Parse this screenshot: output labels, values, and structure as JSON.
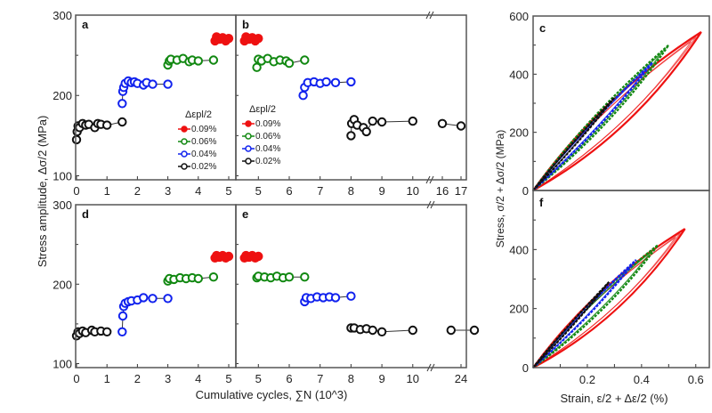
{
  "figure": {
    "ylabel_left": "Stress amplitude, Δσ/2 (MPa)",
    "xlabel_left": "Cumulative cycles, ∑N (10^3)",
    "ylabel_right": "Stress, σ/2 + Δσ/2 (MPa)",
    "xlabel_right": "Strain, ε/2 + Δε/2 (%)",
    "legend_title": "Δεpl/2",
    "colors": {
      "0.09%": "#ee1111",
      "0.06%": "#118811",
      "0.04%": "#1122ee",
      "0.02%": "#111111"
    }
  },
  "chart_data": [
    {
      "panel": "a",
      "type": "scatter",
      "xlabel": "Cumulative cycles, ∑N (10^3)",
      "ylabel": "Stress amplitude, Δσ/2 (MPa)",
      "xlim": [
        0,
        5.3
      ],
      "ylim": [
        95,
        300
      ],
      "xticks": [
        0,
        1,
        2,
        3,
        4,
        5
      ],
      "yticks": [
        100,
        200,
        300
      ],
      "legend": {
        "title": "Δεpl/2",
        "entries": [
          "0.09%",
          "0.06%",
          "0.04%",
          "0.02%"
        ],
        "placement": "center-right"
      },
      "series": [
        {
          "name": "0.02%",
          "x": [
            0,
            0.02,
            0.05,
            0.1,
            0.2,
            0.3,
            0.4,
            0.6,
            0.7,
            0.8,
            1.0,
            1.5
          ],
          "y": [
            145,
            155,
            162,
            160,
            165,
            163,
            164,
            160,
            165,
            164,
            163,
            167
          ]
        },
        {
          "name": "0.04%",
          "x": [
            1.5,
            1.52,
            1.55,
            1.6,
            1.7,
            1.8,
            1.9,
            2.0,
            2.2,
            2.3,
            2.5,
            3.0
          ],
          "y": [
            190,
            205,
            210,
            215,
            218,
            216,
            217,
            215,
            213,
            216,
            214,
            214
          ]
        },
        {
          "name": "0.06%",
          "x": [
            3.0,
            3.05,
            3.1,
            3.3,
            3.5,
            3.7,
            3.8,
            4.0,
            4.5
          ],
          "y": [
            238,
            243,
            245,
            244,
            246,
            242,
            244,
            243,
            244
          ]
        },
        {
          "name": "0.09%",
          "x": [
            4.55,
            4.6,
            4.7,
            4.8,
            4.9,
            5.0
          ],
          "y": [
            268,
            273,
            270,
            272,
            268,
            271
          ]
        }
      ]
    },
    {
      "panel": "b",
      "type": "scatter",
      "xlabel": "Cumulative cycles, ∑N (10^3)",
      "ylabel": "",
      "xlim": [
        4.3,
        17.2
      ],
      "axis_break": [
        10,
        16
      ],
      "xticks": [
        5,
        6,
        7,
        8,
        9,
        10,
        16,
        17
      ],
      "ylim": [
        95,
        300
      ],
      "legend": {
        "title": "Δεpl/2",
        "entries": [
          "0.09%",
          "0.06%",
          "0.04%",
          "0.02%"
        ],
        "placement": "center-left"
      },
      "series": [
        {
          "name": "0.09%",
          "x": [
            4.55,
            4.6,
            4.7,
            4.8,
            4.9,
            5.0
          ],
          "y": [
            268,
            273,
            270,
            272,
            268,
            271
          ]
        },
        {
          "name": "0.06%",
          "x": [
            4.95,
            5.0,
            5.1,
            5.3,
            5.5,
            5.7,
            5.9,
            6.0,
            6.5
          ],
          "y": [
            235,
            245,
            243,
            246,
            242,
            244,
            243,
            240,
            244
          ]
        },
        {
          "name": "0.04%",
          "x": [
            6.45,
            6.5,
            6.6,
            6.8,
            7.0,
            7.2,
            7.5,
            8.0
          ],
          "y": [
            200,
            210,
            216,
            217,
            215,
            217,
            216,
            217
          ]
        },
        {
          "name": "0.02%",
          "x": [
            8.0,
            8.02,
            8.1,
            8.2,
            8.4,
            8.5,
            8.7,
            9.0,
            10.0,
            16.0,
            17.0
          ],
          "y": [
            150,
            165,
            170,
            163,
            160,
            155,
            168,
            167,
            168,
            165,
            162
          ]
        }
      ]
    },
    {
      "panel": "c",
      "type": "line",
      "xlabel": "Strain, ε/2 + Δε/2 (%)",
      "ylabel": "Stress, σ/2 + Δσ/2 (MPa)",
      "xlim": [
        0,
        0.65
      ],
      "ylim": [
        0,
        600
      ],
      "yticks": [
        0,
        200,
        400,
        600
      ],
      "series": [
        {
          "name": "0.09%",
          "peak_strain": 0.62,
          "peak_stress": 545
        },
        {
          "name": "0.06%",
          "peak_strain": 0.5,
          "peak_stress": 500
        },
        {
          "name": "0.04%",
          "peak_strain": 0.44,
          "peak_stress": 440
        },
        {
          "name": "0.02%",
          "peak_strain": 0.3,
          "peak_stress": 320
        }
      ]
    },
    {
      "panel": "d",
      "type": "scatter",
      "xlabel": "Cumulative cycles, ∑N (10^3)",
      "ylabel": "Stress amplitude, Δσ/2 (MPa)",
      "xlim": [
        0,
        5.3
      ],
      "ylim": [
        95,
        300
      ],
      "xticks": [
        0,
        1,
        2,
        3,
        4,
        5
      ],
      "yticks": [
        100,
        200,
        300
      ],
      "series": [
        {
          "name": "0.02%",
          "x": [
            0,
            0.05,
            0.1,
            0.2,
            0.3,
            0.5,
            0.6,
            0.8,
            1.0
          ],
          "y": [
            135,
            140,
            138,
            141,
            139,
            142,
            140,
            141,
            140
          ]
        },
        {
          "name": "0.04%",
          "x": [
            1.5,
            1.52,
            1.55,
            1.6,
            1.7,
            1.8,
            2.0,
            2.2,
            2.5,
            3.0
          ],
          "y": [
            140,
            160,
            172,
            176,
            178,
            179,
            180,
            183,
            182,
            182
          ]
        },
        {
          "name": "0.06%",
          "x": [
            3.0,
            3.05,
            3.2,
            3.4,
            3.6,
            3.8,
            4.0,
            4.5
          ],
          "y": [
            204,
            207,
            206,
            208,
            207,
            208,
            207,
            209
          ]
        },
        {
          "name": "0.09%",
          "x": [
            4.55,
            4.6,
            4.7,
            4.8,
            4.9,
            5.0
          ],
          "y": [
            233,
            236,
            234,
            236,
            233,
            235
          ]
        }
      ]
    },
    {
      "panel": "e",
      "type": "scatter",
      "xlabel": "Cumulative cycles, ∑N (10^3)",
      "ylabel": "",
      "xlim": [
        4.3,
        26
      ],
      "axis_break": [
        10,
        22
      ],
      "xticks": [
        5,
        6,
        7,
        8,
        9,
        10,
        24
      ],
      "ylim": [
        95,
        300
      ],
      "series": [
        {
          "name": "0.09%",
          "x": [
            4.55,
            4.6,
            4.7,
            4.8,
            4.9,
            5.0
          ],
          "y": [
            233,
            236,
            234,
            236,
            233,
            235
          ]
        },
        {
          "name": "0.06%",
          "x": [
            4.95,
            5.0,
            5.2,
            5.4,
            5.6,
            5.8,
            6.0,
            6.5
          ],
          "y": [
            208,
            210,
            209,
            208,
            210,
            208,
            209,
            209
          ]
        },
        {
          "name": "0.04%",
          "x": [
            6.5,
            6.55,
            6.7,
            6.9,
            7.1,
            7.3,
            7.5,
            8.0
          ],
          "y": [
            178,
            183,
            182,
            184,
            183,
            184,
            183,
            185
          ]
        },
        {
          "name": "0.02%",
          "x": [
            8.0,
            8.1,
            8.3,
            8.5,
            8.7,
            9.0,
            10.0,
            22.5,
            26
          ],
          "y": [
            145,
            145,
            143,
            144,
            142,
            140,
            142,
            142,
            142
          ]
        }
      ]
    },
    {
      "panel": "f",
      "type": "line",
      "xlabel": "Strain, ε/2 + Δε/2 (%)",
      "ylabel": "Stress, σ/2 + Δσ/2 (MPa)",
      "xlim": [
        0,
        0.65
      ],
      "ylim": [
        0,
        600
      ],
      "xticks": [
        0.2,
        0.4,
        0.6
      ],
      "yticks": [
        0,
        200,
        400
      ],
      "series": [
        {
          "name": "0.09%",
          "peak_strain": 0.56,
          "peak_stress": 470
        },
        {
          "name": "0.06%",
          "peak_strain": 0.46,
          "peak_stress": 415
        },
        {
          "name": "0.04%",
          "peak_strain": 0.38,
          "peak_stress": 365
        },
        {
          "name": "0.02%",
          "peak_strain": 0.28,
          "peak_stress": 290
        }
      ]
    }
  ]
}
